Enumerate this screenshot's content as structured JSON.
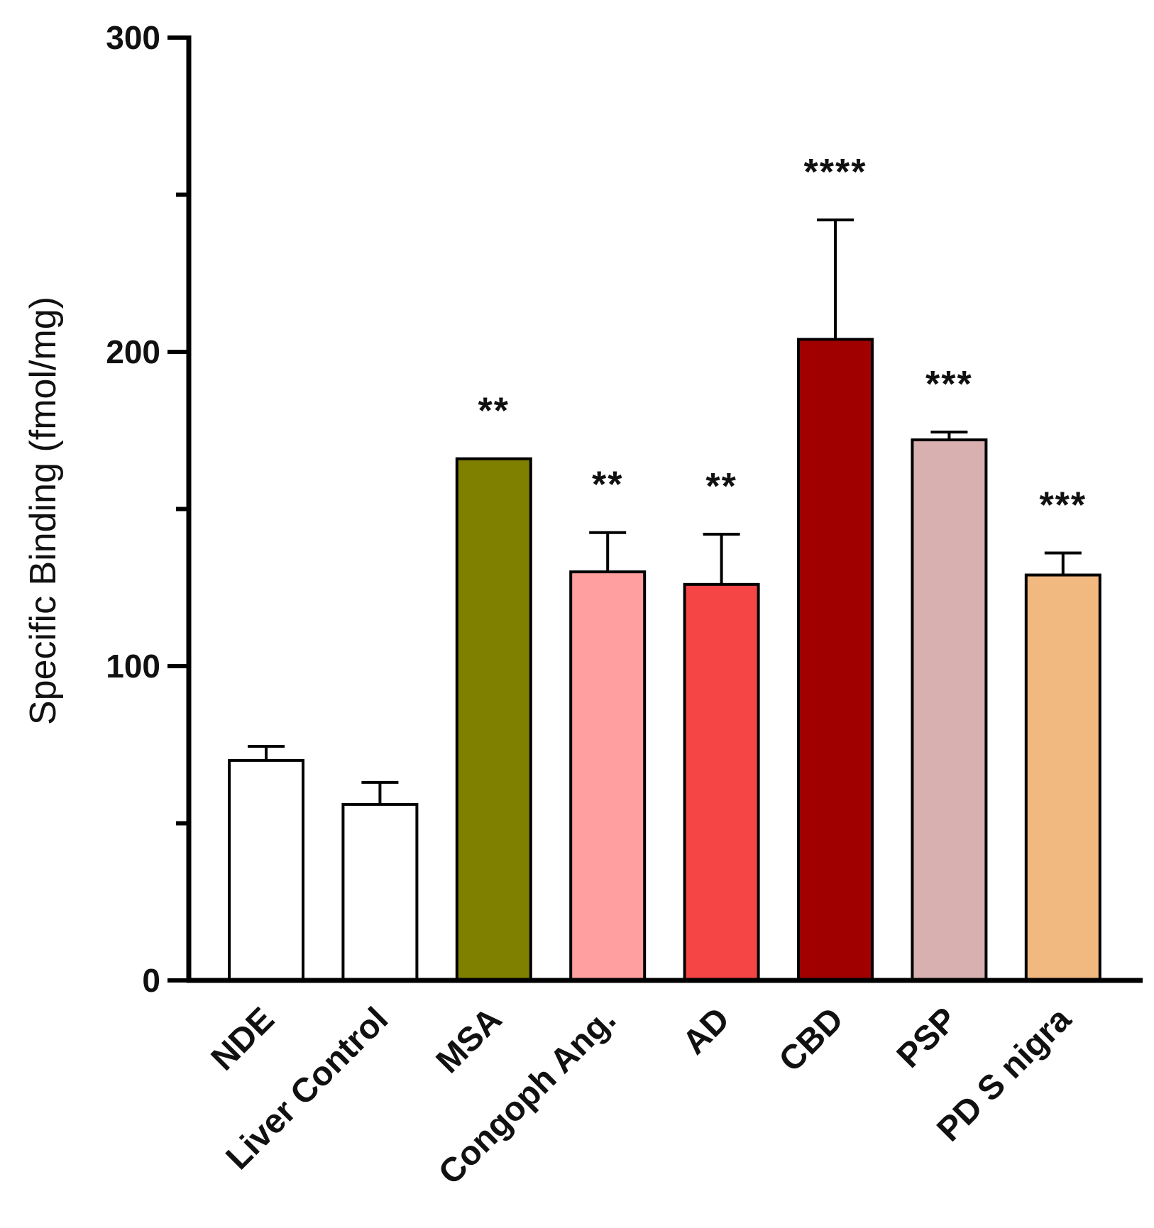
{
  "chart_data": {
    "type": "bar",
    "title": "",
    "xlabel": "",
    "ylabel": "Specific Binding (fmol/mg)",
    "ylim": [
      0,
      300
    ],
    "yticks": [
      0,
      100,
      200,
      300
    ],
    "grid": false,
    "legend": "none",
    "categories": [
      "NDE",
      "Liver Control",
      "MSA",
      "Congoph Ang.",
      "AD",
      "CBD",
      "PSP",
      "PD S nigra"
    ],
    "values": [
      70,
      56,
      166,
      130,
      126,
      204,
      172,
      129
    ],
    "errors": [
      4.5,
      7,
      0,
      12.5,
      16,
      38,
      2.5,
      7
    ],
    "significance": [
      "",
      "",
      "**",
      "**",
      "**",
      "****",
      "***",
      "***"
    ],
    "colors": [
      "#ffffff",
      "#ffffff",
      "#7f7f00",
      "#ff9f9f",
      "#f54545",
      "#a00000",
      "#d8b0b0",
      "#f1b880"
    ]
  }
}
